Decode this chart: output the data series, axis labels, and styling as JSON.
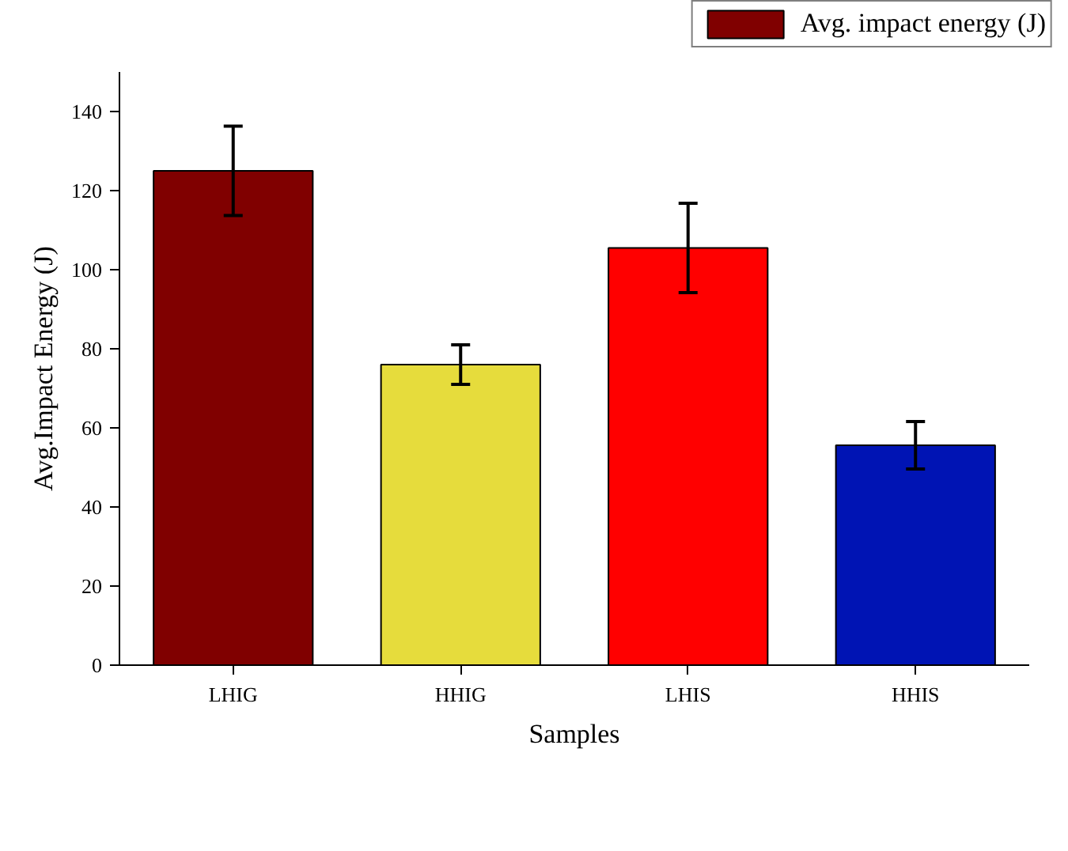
{
  "chart_data": {
    "type": "bar",
    "xlabel": "Samples",
    "ylabel": "Avg.Impact Energy (J)",
    "categories": [
      "LHIG",
      "HHIG",
      "LHIS",
      "HHIS"
    ],
    "series": [
      {
        "name": "Avg. impact energy (J)",
        "color": "#800000",
        "colors": [
          "#800000",
          "#e6dc3c",
          "#ff0000",
          "#0014b4"
        ],
        "values": [
          125,
          76,
          105.5,
          55.6
        ],
        "errors": [
          11.3,
          5,
          11.3,
          6
        ]
      }
    ],
    "ylim": [
      0,
      150
    ],
    "yticks": [
      0,
      20,
      40,
      60,
      80,
      100,
      120,
      140
    ],
    "grid": false,
    "legend": "top right"
  }
}
